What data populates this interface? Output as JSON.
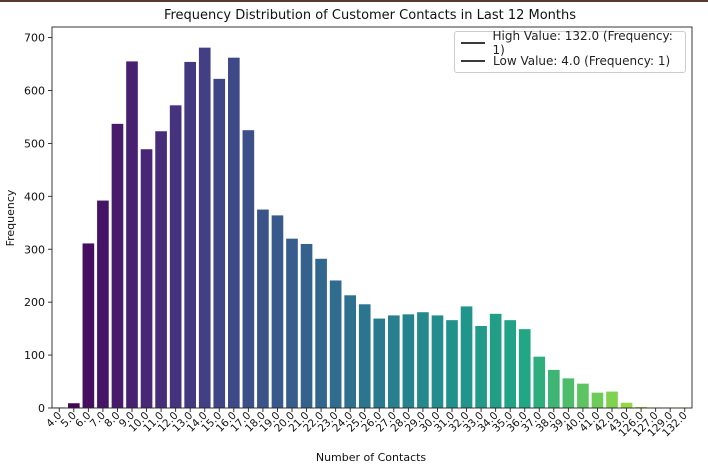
{
  "chart_data": {
    "type": "bar",
    "title": "Frequency Distribution of Customer Contacts in Last 12 Months",
    "xlabel": "Number of Contacts",
    "ylabel": "Frequency",
    "ylim": [
      0,
      720
    ],
    "yticks": [
      0,
      100,
      200,
      300,
      400,
      500,
      600,
      700
    ],
    "categories": [
      "4.0",
      "5.0",
      "6.0",
      "7.0",
      "8.0",
      "9.0",
      "10.0",
      "11.0",
      "12.0",
      "13.0",
      "14.0",
      "15.0",
      "16.0",
      "17.0",
      "18.0",
      "19.0",
      "20.0",
      "21.0",
      "22.0",
      "23.0",
      "24.0",
      "25.0",
      "26.0",
      "27.0",
      "28.0",
      "29.0",
      "30.0",
      "31.0",
      "32.0",
      "33.0",
      "34.0",
      "35.0",
      "36.0",
      "37.0",
      "38.0",
      "39.0",
      "40.0",
      "41.0",
      "42.0",
      "43.0",
      "126.0",
      "127.0",
      "129.0",
      "132.0"
    ],
    "values": [
      1,
      9,
      311,
      392,
      537,
      655,
      489,
      523,
      572,
      654,
      681,
      622,
      662,
      525,
      375,
      364,
      320,
      310,
      282,
      241,
      213,
      196,
      169,
      175,
      177,
      181,
      175,
      166,
      192,
      155,
      178,
      166,
      149,
      97,
      72,
      56,
      46,
      29,
      31,
      10,
      2,
      1,
      1,
      1
    ],
    "colormap": "viridis",
    "grid": false,
    "legend_position": "top-right",
    "legend": [
      "High Value: 132.0 (Frequency: 1)",
      "Low Value: 4.0 (Frequency: 1)"
    ]
  }
}
